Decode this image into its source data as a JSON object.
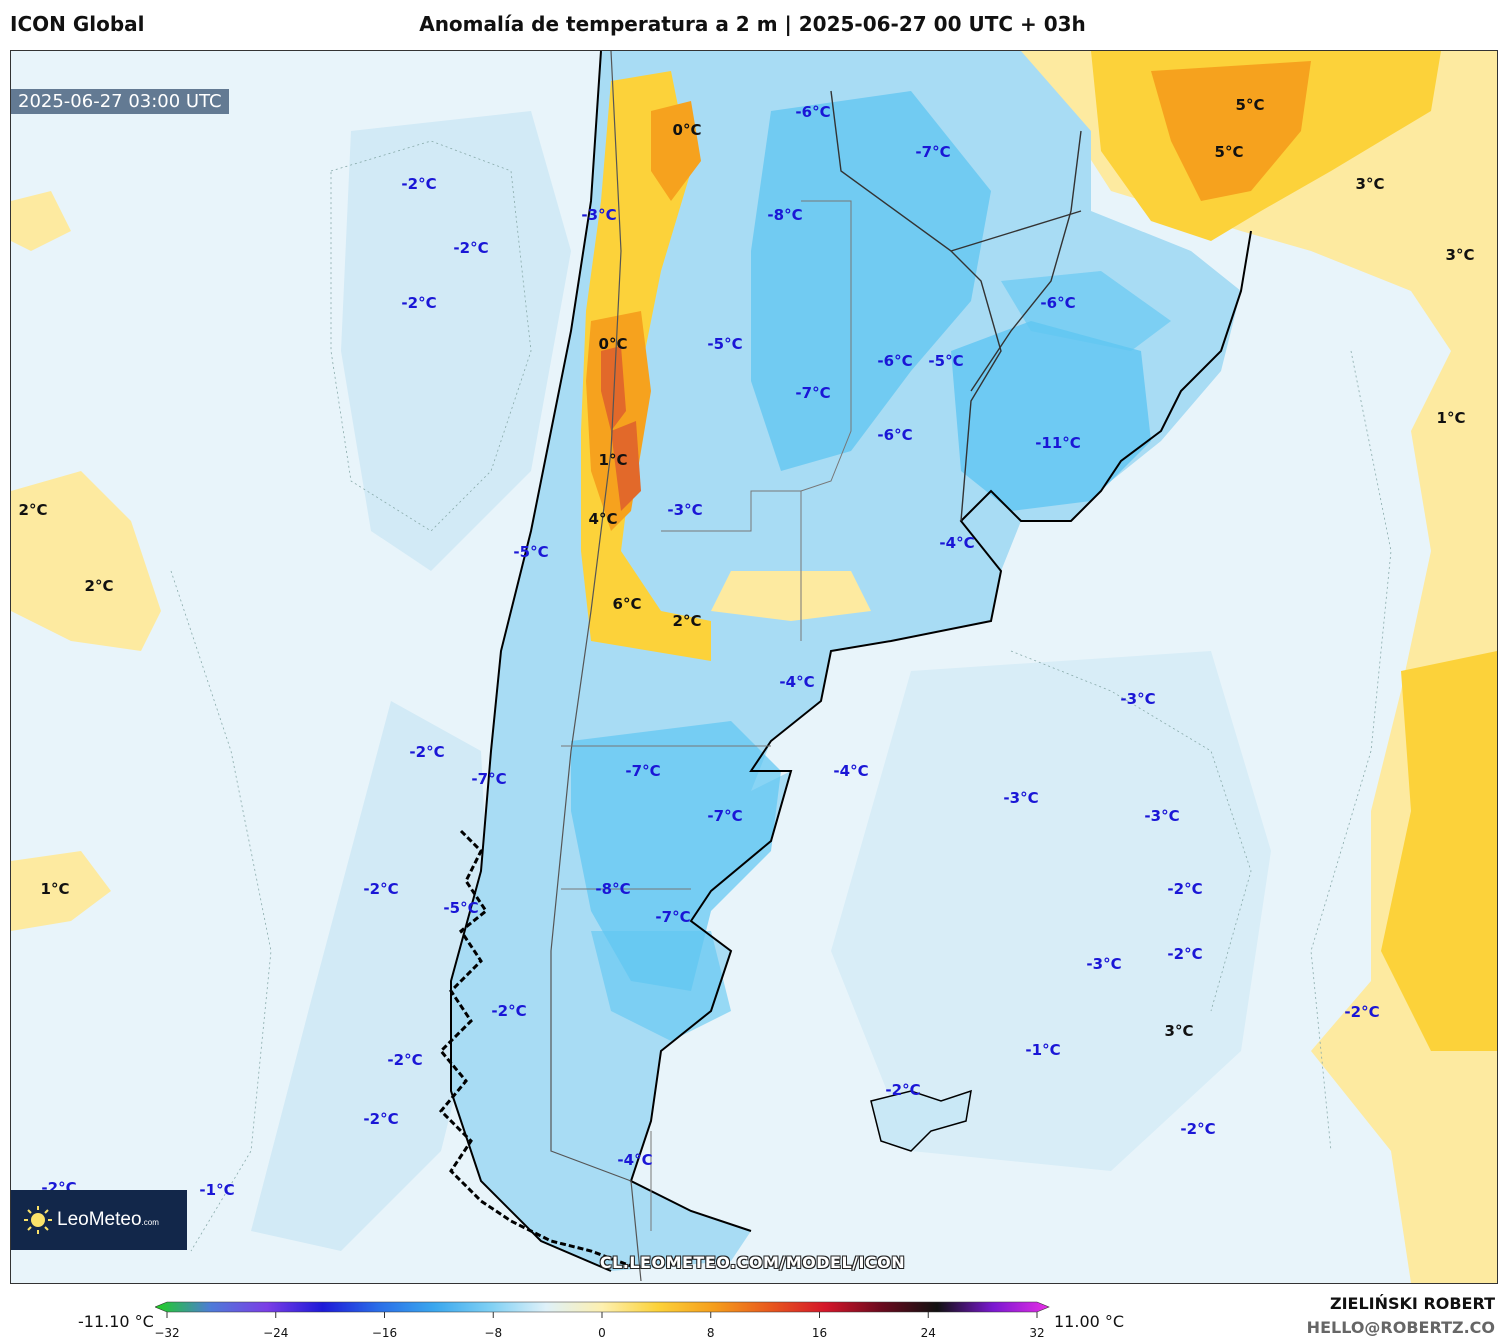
{
  "header": {
    "model": "ICON Global",
    "title": "Anomalía de temperatura a 2 m | 2025-06-27 00 UTC + 03h"
  },
  "map": {
    "valid_time": "2025-06-27 03:00 UTC",
    "watermark": "CL.LEOMETEO.COM/MODEL/ICON",
    "logo_text": "LeoMeteo",
    "logo_suffix": ".com",
    "colors": {
      "ocean_light": "#e8f4fa",
      "ocean_mid": "#d2eaf6",
      "cold": "#a8dcf4",
      "cold_strong": "#5fc6f2",
      "warm_light": "#fdeaa0",
      "warm": "#fcd23a",
      "warm_strong": "#f6a21e",
      "hot": "#e2692a"
    },
    "labels": [
      {
        "text": "0°C",
        "sign": "pos"
      },
      {
        "text": "-6°C",
        "sign": "neg"
      },
      {
        "text": "-7°C",
        "sign": "neg"
      },
      {
        "text": "5°C",
        "sign": "pos"
      },
      {
        "text": "5°C",
        "sign": "pos"
      },
      {
        "text": "3°C",
        "sign": "pos"
      },
      {
        "text": "3°C",
        "sign": "pos"
      },
      {
        "text": "-2°C",
        "sign": "neg"
      },
      {
        "text": "-3°C",
        "sign": "neg"
      },
      {
        "text": "-8°C",
        "sign": "neg"
      },
      {
        "text": "-2°C",
        "sign": "neg"
      },
      {
        "text": "-6°C",
        "sign": "neg"
      },
      {
        "text": "-2°C",
        "sign": "neg"
      },
      {
        "text": "0°C",
        "sign": "pos"
      },
      {
        "text": "-5°C",
        "sign": "neg"
      },
      {
        "text": "-6°C",
        "sign": "neg"
      },
      {
        "text": "-5°C",
        "sign": "neg"
      },
      {
        "text": "-7°C",
        "sign": "neg"
      },
      {
        "text": "1°C",
        "sign": "pos"
      },
      {
        "text": "-6°C",
        "sign": "neg"
      },
      {
        "text": "-11°C",
        "sign": "neg"
      },
      {
        "text": "1°C",
        "sign": "pos"
      },
      {
        "text": "2°C",
        "sign": "pos"
      },
      {
        "text": "-3°C",
        "sign": "neg"
      },
      {
        "text": "4°C",
        "sign": "pos"
      },
      {
        "text": "-4°C",
        "sign": "neg"
      },
      {
        "text": "-5°C",
        "sign": "neg"
      },
      {
        "text": "2°C",
        "sign": "pos"
      },
      {
        "text": "6°C",
        "sign": "pos"
      },
      {
        "text": "2°C",
        "sign": "pos"
      },
      {
        "text": "-4°C",
        "sign": "neg"
      },
      {
        "text": "-3°C",
        "sign": "neg"
      },
      {
        "text": "-2°C",
        "sign": "neg"
      },
      {
        "text": "-7°C",
        "sign": "neg"
      },
      {
        "text": "-7°C",
        "sign": "neg"
      },
      {
        "text": "-4°C",
        "sign": "neg"
      },
      {
        "text": "-3°C",
        "sign": "neg"
      },
      {
        "text": "-7°C",
        "sign": "neg"
      },
      {
        "text": "-3°C",
        "sign": "neg"
      },
      {
        "text": "1°C",
        "sign": "pos"
      },
      {
        "text": "-2°C",
        "sign": "neg"
      },
      {
        "text": "-8°C",
        "sign": "neg"
      },
      {
        "text": "-2°C",
        "sign": "neg"
      },
      {
        "text": "-5°C",
        "sign": "neg"
      },
      {
        "text": "-7°C",
        "sign": "neg"
      },
      {
        "text": "-3°C",
        "sign": "neg"
      },
      {
        "text": "-2°C",
        "sign": "neg"
      },
      {
        "text": "-2°C",
        "sign": "neg"
      },
      {
        "text": "3°C",
        "sign": "pos"
      },
      {
        "text": "-1°C",
        "sign": "neg"
      },
      {
        "text": "-2°C",
        "sign": "neg"
      },
      {
        "text": "-2°C",
        "sign": "neg"
      },
      {
        "text": "-2°C",
        "sign": "neg"
      },
      {
        "text": "-2°C",
        "sign": "neg"
      },
      {
        "text": "-2°C",
        "sign": "neg"
      },
      {
        "text": "-4°C",
        "sign": "neg"
      },
      {
        "text": "-2°C",
        "sign": "neg"
      },
      {
        "text": "-1°C",
        "sign": "neg"
      }
    ]
  },
  "colorbar": {
    "min_label": "-11.10 °C",
    "max_label": "11.00 °C",
    "ticks": [
      "−32",
      "−24",
      "−16",
      "−8",
      "0",
      "8",
      "16",
      "24",
      "32"
    ],
    "stops": [
      "#1fd11f",
      "#4e7bd8",
      "#7b3ee6",
      "#1d1ad8",
      "#2a6ee8",
      "#3aa7ee",
      "#7fd0f4",
      "#dff1f9",
      "#fdf0b0",
      "#fcd23a",
      "#f59e1c",
      "#e8591e",
      "#d4162a",
      "#6a0a1e",
      "#111111",
      "#7a18d0",
      "#e62ee6"
    ]
  },
  "credit": {
    "author": "ZIELIŃSKI ROBERT",
    "email": "HELLO@ROBERTZ.CO"
  }
}
